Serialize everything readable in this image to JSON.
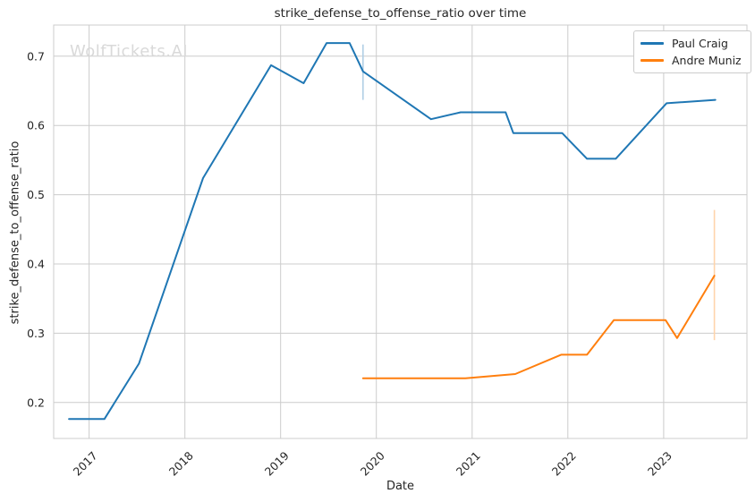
{
  "watermark": "WolfTickets.AI",
  "colors": {
    "background": "#ffffff",
    "text": "#262626",
    "grid": "#cccccc",
    "spine": "#cccccc",
    "watermark": "#d9d9d9"
  },
  "chart_data": {
    "type": "line",
    "title": "strike_defense_to_offense_ratio over time",
    "xlabel": "Date",
    "ylabel": "strike_defense_to_offense_ratio",
    "grid": true,
    "legend_position": "upper right",
    "xlim": [
      2016.63,
      2023.87
    ],
    "ylim": [
      0.148,
      0.745
    ],
    "x_ticks": [
      2017,
      2018,
      2019,
      2020,
      2021,
      2022,
      2023
    ],
    "x_tick_labels": [
      "2017",
      "2018",
      "2019",
      "2020",
      "2021",
      "2022",
      "2023"
    ],
    "y_ticks": [
      0.2,
      0.3,
      0.4,
      0.5,
      0.6,
      0.7
    ],
    "y_tick_labels": [
      "0.2",
      "0.3",
      "0.4",
      "0.5",
      "0.6",
      "0.7"
    ],
    "series": [
      {
        "name": "Paul Craig",
        "color": "#1f77b4",
        "ci_color": "#b1cfe5",
        "x": [
          2016.79,
          2017.16,
          2017.52,
          2018.19,
          2018.9,
          2019.24,
          2019.48,
          2019.72,
          2019.86,
          2020.57,
          2020.88,
          2021.35,
          2021.43,
          2021.94,
          2022.2,
          2022.5,
          2023.03,
          2023.54
        ],
        "y": [
          0.176,
          0.176,
          0.256,
          0.524,
          0.687,
          0.661,
          0.719,
          0.719,
          0.678,
          0.609,
          0.619,
          0.619,
          0.589,
          0.589,
          0.552,
          0.552,
          0.632,
          0.637
        ],
        "error_bar": {
          "x": 2019.86,
          "y_low": 0.637,
          "y_high": 0.717
        }
      },
      {
        "name": "Andre Muniz",
        "color": "#ff7f0e",
        "ci_color": "#ffd4ab",
        "x": [
          2019.86,
          2020.93,
          2021.45,
          2021.93,
          2022.2,
          2022.48,
          2023.02,
          2023.14,
          2023.53
        ],
        "y": [
          0.235,
          0.235,
          0.241,
          0.269,
          0.269,
          0.319,
          0.319,
          0.293,
          0.383
        ],
        "error_bar": {
          "x": 2023.53,
          "y_low": 0.29,
          "y_high": 0.478
        }
      }
    ]
  }
}
